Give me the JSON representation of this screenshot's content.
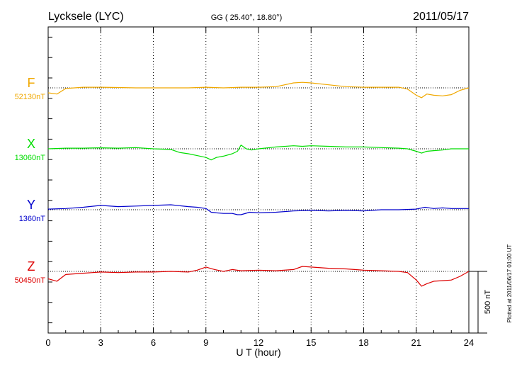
{
  "header": {
    "station": "Lycksele (LYC)",
    "coords": "GG ( 25.40°,  18.80°)",
    "date": "2011/05/17"
  },
  "footer": {
    "plotted": "Plotted at 2011/06/17 01:00 UT"
  },
  "chart_data": {
    "type": "line",
    "xlabel": "U T (hour)",
    "xlim": [
      0,
      24
    ],
    "xticks": [
      0,
      3,
      6,
      9,
      12,
      15,
      18,
      21,
      24
    ],
    "grid": true,
    "scale_bar_label": "500 nT",
    "scale_bar_nT": 500,
    "series": [
      {
        "name": "F",
        "baseline": "52130nT",
        "color": "#f0a800",
        "x": [
          0,
          0.5,
          1,
          2,
          3,
          4,
          5,
          6,
          7,
          8,
          9,
          10,
          11,
          12,
          13,
          14,
          14.5,
          15,
          16,
          17,
          18,
          19,
          20,
          20.5,
          21,
          21.3,
          21.6,
          22,
          22.5,
          23,
          23.5,
          24
        ],
        "y": [
          -40,
          -50,
          -5,
          5,
          5,
          3,
          0,
          0,
          0,
          0,
          5,
          0,
          5,
          5,
          10,
          40,
          45,
          40,
          25,
          10,
          5,
          5,
          5,
          -10,
          -60,
          -80,
          -50,
          -60,
          -65,
          -55,
          -20,
          0
        ]
      },
      {
        "name": "X",
        "baseline": "13060nT",
        "color": "#00dd00",
        "x": [
          0,
          1,
          2,
          3,
          4,
          5,
          6,
          7,
          7.5,
          8,
          8.5,
          9,
          9.3,
          9.6,
          10,
          10.5,
          10.8,
          11,
          11.3,
          11.6,
          12,
          13,
          14,
          14.5,
          15,
          16,
          17,
          18,
          19,
          20,
          20.5,
          21,
          21.3,
          21.6,
          22,
          22.5,
          23,
          24
        ],
        "y": [
          0,
          5,
          5,
          8,
          5,
          10,
          0,
          -5,
          -30,
          -40,
          -55,
          -70,
          -90,
          -70,
          -60,
          -40,
          -20,
          30,
          0,
          -10,
          0,
          15,
          25,
          20,
          25,
          20,
          15,
          15,
          10,
          5,
          0,
          -20,
          -35,
          -20,
          -15,
          -10,
          0,
          0
        ]
      },
      {
        "name": "Y",
        "baseline": "1360nT",
        "color": "#0000cc",
        "x": [
          0,
          1,
          2,
          3,
          4,
          5,
          6,
          7,
          8,
          8.5,
          9,
          9.3,
          9.6,
          10,
          10.5,
          10.8,
          11,
          11.5,
          12,
          13,
          14,
          15,
          16,
          17,
          18,
          19,
          20,
          21,
          21.5,
          22,
          22.5,
          23,
          24
        ],
        "y": [
          5,
          10,
          20,
          35,
          25,
          30,
          35,
          40,
          25,
          20,
          10,
          -20,
          -25,
          -30,
          -30,
          -40,
          -40,
          -20,
          -25,
          -20,
          -10,
          -5,
          -10,
          -5,
          -10,
          0,
          0,
          5,
          20,
          10,
          15,
          10,
          10
        ]
      },
      {
        "name": "Z",
        "baseline": "50450nT",
        "color": "#dd0000",
        "x": [
          0,
          0.5,
          1,
          2,
          3,
          4,
          5,
          6,
          7,
          8,
          8.5,
          9,
          9.5,
          10,
          10.5,
          11,
          12,
          13,
          14,
          14.5,
          15,
          16,
          17,
          18,
          19,
          20,
          20.5,
          21,
          21.3,
          21.6,
          22,
          22.5,
          23,
          23.5,
          24
        ],
        "y": [
          -60,
          -80,
          -25,
          -15,
          -5,
          -10,
          -5,
          -5,
          0,
          -5,
          10,
          35,
          15,
          0,
          15,
          5,
          10,
          5,
          15,
          40,
          35,
          25,
          20,
          10,
          5,
          0,
          -10,
          -70,
          -120,
          -100,
          -80,
          -75,
          -70,
          -40,
          0
        ]
      }
    ]
  }
}
